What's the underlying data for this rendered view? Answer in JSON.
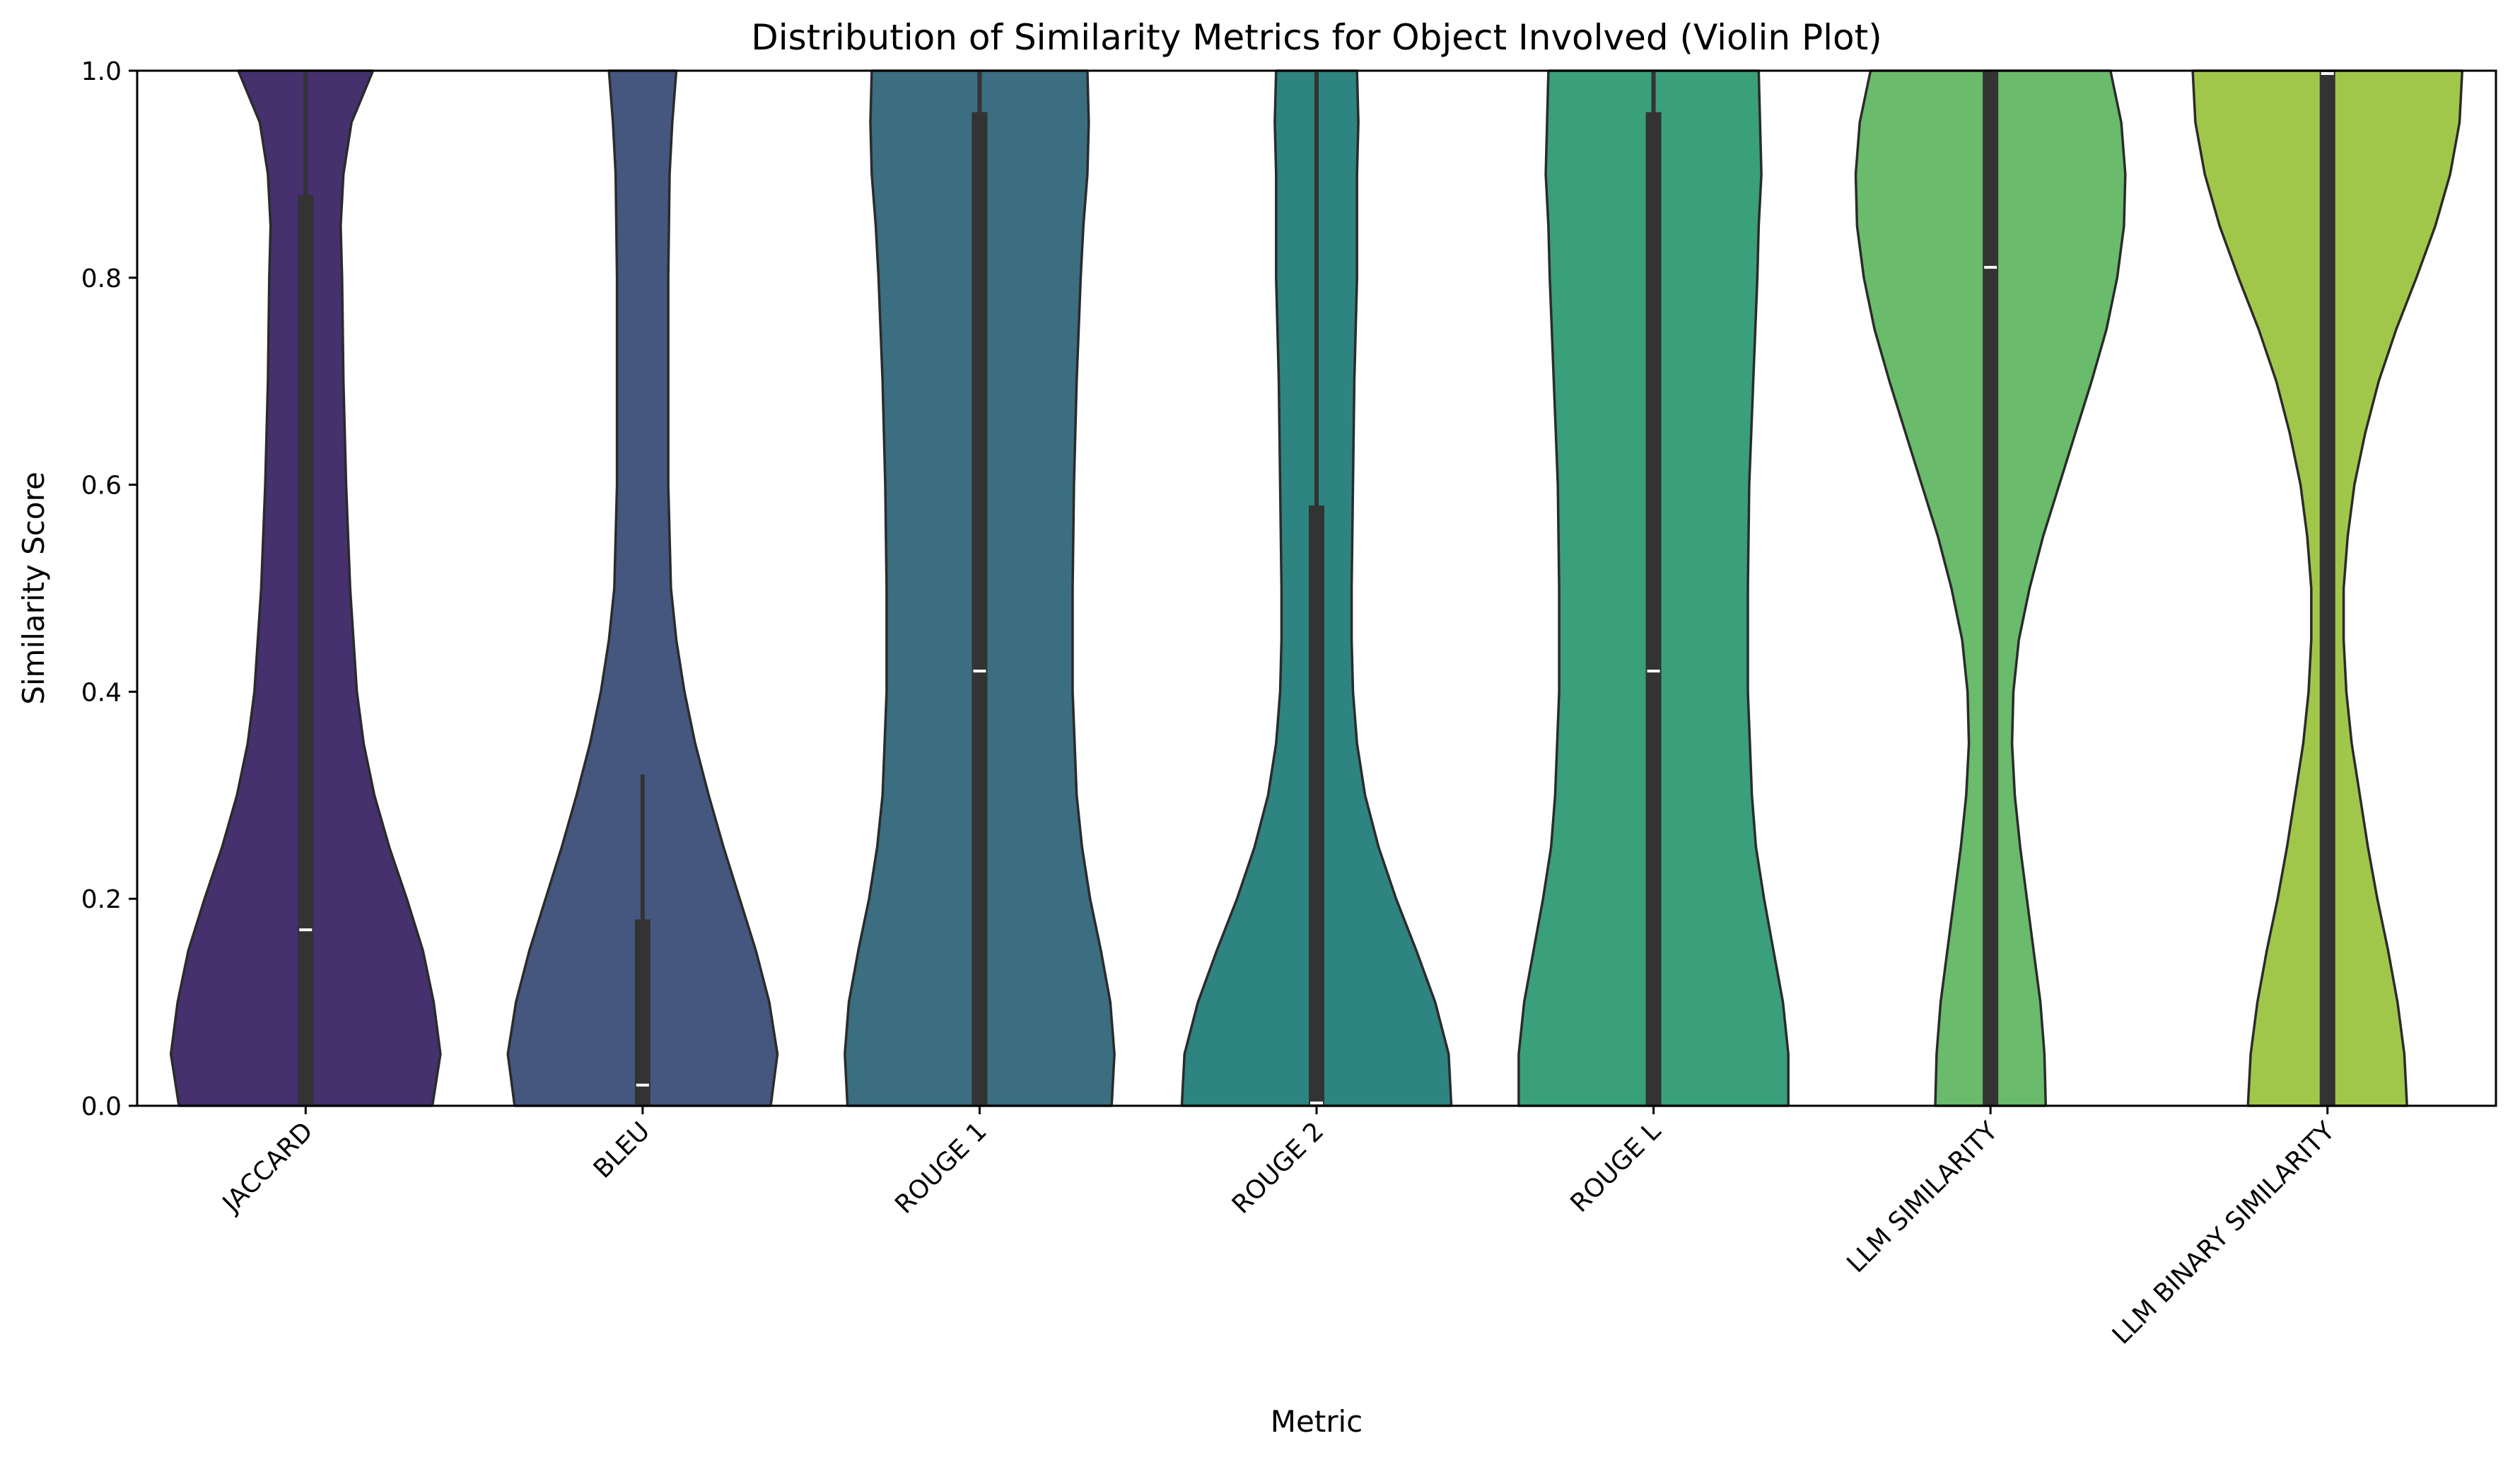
{
  "chart_data": {
    "type": "violin",
    "title": "Distribution of Similarity Metrics for Object Involved (Violin Plot)",
    "xlabel": "Metric",
    "ylabel": "Similarity Score",
    "ylim": [
      0,
      1
    ],
    "yticks": [
      "0.0",
      "0.2",
      "0.4",
      "0.6",
      "0.8",
      "1.0"
    ],
    "grid": false,
    "legend": "none",
    "categories": [
      "JACCARD",
      "BLEU",
      "ROUGE 1",
      "ROUGE 2",
      "ROUGE L",
      "LLM SIMILARITY",
      "LLM BINARY SIMILARITY"
    ],
    "series": [
      {
        "category": "JACCARD",
        "color": "#46306e",
        "median": 0.17,
        "q1": 0.0,
        "q3": 0.88,
        "whisker_low": 0.0,
        "whisker_high": 1.0,
        "profile": [
          [
            0,
            0.94
          ],
          [
            0.05,
            1.0
          ],
          [
            0.1,
            0.95
          ],
          [
            0.15,
            0.87
          ],
          [
            0.2,
            0.75
          ],
          [
            0.25,
            0.62
          ],
          [
            0.3,
            0.51
          ],
          [
            0.35,
            0.43
          ],
          [
            0.4,
            0.38
          ],
          [
            0.5,
            0.33
          ],
          [
            0.6,
            0.3
          ],
          [
            0.7,
            0.28
          ],
          [
            0.8,
            0.27
          ],
          [
            0.85,
            0.26
          ],
          [
            0.9,
            0.28
          ],
          [
            0.95,
            0.34
          ],
          [
            1.0,
            0.5
          ]
        ]
      },
      {
        "category": "BLEU",
        "color": "#45577f",
        "median": 0.02,
        "q1": 0.0,
        "q3": 0.18,
        "whisker_low": 0.0,
        "whisker_high": 0.32,
        "profile": [
          [
            0,
            0.95
          ],
          [
            0.05,
            1.0
          ],
          [
            0.1,
            0.94
          ],
          [
            0.15,
            0.84
          ],
          [
            0.2,
            0.72
          ],
          [
            0.25,
            0.6
          ],
          [
            0.3,
            0.49
          ],
          [
            0.35,
            0.39
          ],
          [
            0.4,
            0.31
          ],
          [
            0.45,
            0.25
          ],
          [
            0.5,
            0.21
          ],
          [
            0.6,
            0.19
          ],
          [
            0.7,
            0.19
          ],
          [
            0.8,
            0.19
          ],
          [
            0.9,
            0.2
          ],
          [
            0.95,
            0.22
          ],
          [
            1.0,
            0.25
          ]
        ]
      },
      {
        "category": "ROUGE 1",
        "color": "#3a6e80",
        "median": 0.42,
        "q1": 0.0,
        "q3": 0.96,
        "whisker_low": 0.0,
        "whisker_high": 1.0,
        "profile": [
          [
            0,
            0.98
          ],
          [
            0.05,
            1.0
          ],
          [
            0.1,
            0.97
          ],
          [
            0.15,
            0.9
          ],
          [
            0.2,
            0.82
          ],
          [
            0.25,
            0.76
          ],
          [
            0.3,
            0.72
          ],
          [
            0.4,
            0.69
          ],
          [
            0.5,
            0.69
          ],
          [
            0.6,
            0.7
          ],
          [
            0.7,
            0.72
          ],
          [
            0.8,
            0.75
          ],
          [
            0.85,
            0.77
          ],
          [
            0.9,
            0.8
          ],
          [
            0.95,
            0.81
          ],
          [
            1.0,
            0.8
          ]
        ]
      },
      {
        "category": "ROUGE 2",
        "color": "#2d8480",
        "median": 0.0,
        "q1": 0.0,
        "q3": 0.58,
        "whisker_low": 0.0,
        "whisker_high": 1.0,
        "profile": [
          [
            0,
            1.0
          ],
          [
            0.05,
            0.98
          ],
          [
            0.1,
            0.88
          ],
          [
            0.15,
            0.74
          ],
          [
            0.2,
            0.59
          ],
          [
            0.25,
            0.46
          ],
          [
            0.3,
            0.36
          ],
          [
            0.35,
            0.3
          ],
          [
            0.4,
            0.27
          ],
          [
            0.45,
            0.26
          ],
          [
            0.5,
            0.26
          ],
          [
            0.6,
            0.27
          ],
          [
            0.7,
            0.28
          ],
          [
            0.8,
            0.3
          ],
          [
            0.9,
            0.3
          ],
          [
            0.95,
            0.31
          ],
          [
            1.0,
            0.3
          ]
        ]
      },
      {
        "category": "ROUGE L",
        "color": "#3a9f7b",
        "median": 0.42,
        "q1": 0.0,
        "q3": 0.96,
        "whisker_low": 0.0,
        "whisker_high": 1.0,
        "profile": [
          [
            0,
            1.0
          ],
          [
            0.05,
            1.0
          ],
          [
            0.1,
            0.96
          ],
          [
            0.15,
            0.89
          ],
          [
            0.2,
            0.82
          ],
          [
            0.25,
            0.76
          ],
          [
            0.3,
            0.73
          ],
          [
            0.4,
            0.7
          ],
          [
            0.5,
            0.7
          ],
          [
            0.6,
            0.71
          ],
          [
            0.7,
            0.74
          ],
          [
            0.8,
            0.77
          ],
          [
            0.85,
            0.78
          ],
          [
            0.9,
            0.8
          ],
          [
            0.95,
            0.79
          ],
          [
            1.0,
            0.78
          ]
        ]
      },
      {
        "category": "LLM SIMILARITY",
        "color": "#6abb6b",
        "median": 0.81,
        "q1": 0.0,
        "q3": 1.0,
        "whisker_low": 0.0,
        "whisker_high": 1.0,
        "profile": [
          [
            0,
            0.41
          ],
          [
            0.05,
            0.4
          ],
          [
            0.1,
            0.37
          ],
          [
            0.15,
            0.32
          ],
          [
            0.2,
            0.27
          ],
          [
            0.25,
            0.22
          ],
          [
            0.3,
            0.18
          ],
          [
            0.35,
            0.16
          ],
          [
            0.4,
            0.17
          ],
          [
            0.45,
            0.21
          ],
          [
            0.5,
            0.29
          ],
          [
            0.55,
            0.39
          ],
          [
            0.6,
            0.51
          ],
          [
            0.65,
            0.63
          ],
          [
            0.7,
            0.75
          ],
          [
            0.75,
            0.86
          ],
          [
            0.8,
            0.94
          ],
          [
            0.85,
            0.99
          ],
          [
            0.9,
            1.0
          ],
          [
            0.95,
            0.97
          ],
          [
            1.0,
            0.89
          ]
        ]
      },
      {
        "category": "LLM BINARY SIMILARITY",
        "color": "#a1c74a",
        "median": 1.0,
        "q1": 0.0,
        "q3": 1.0,
        "whisker_low": 0.0,
        "whisker_high": 1.0,
        "profile": [
          [
            0,
            0.59
          ],
          [
            0.05,
            0.57
          ],
          [
            0.1,
            0.52
          ],
          [
            0.15,
            0.45
          ],
          [
            0.2,
            0.37
          ],
          [
            0.25,
            0.3
          ],
          [
            0.3,
            0.24
          ],
          [
            0.35,
            0.18
          ],
          [
            0.4,
            0.14
          ],
          [
            0.45,
            0.12
          ],
          [
            0.5,
            0.12
          ],
          [
            0.55,
            0.15
          ],
          [
            0.6,
            0.2
          ],
          [
            0.65,
            0.28
          ],
          [
            0.7,
            0.38
          ],
          [
            0.75,
            0.51
          ],
          [
            0.8,
            0.66
          ],
          [
            0.85,
            0.8
          ],
          [
            0.9,
            0.91
          ],
          [
            0.95,
            0.98
          ],
          [
            1.0,
            1.0
          ]
        ]
      }
    ]
  }
}
